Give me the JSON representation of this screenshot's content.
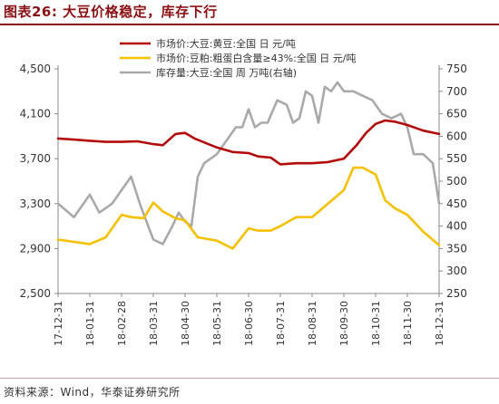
{
  "title": "图表26:    大豆价格稳定，库存下行",
  "source": "资料来源：Wind，华泰证券研究所",
  "colors": {
    "red": "#b30b0b",
    "yellow": "#f5c000",
    "gray": "#a9a9a9",
    "title": "#8b1014"
  },
  "chart_data": {
    "type": "line",
    "title": "大豆价格稳定，库存下行",
    "left_axis": {
      "ylim": [
        2500,
        4500
      ],
      "ticks": [
        "2,500",
        "2,900",
        "3,300",
        "3,700",
        "4,100",
        "4,500"
      ]
    },
    "right_axis": {
      "ylim": [
        250,
        750
      ],
      "ticks": [
        "250",
        "300",
        "350",
        "400",
        "450",
        "500",
        "550",
        "600",
        "650",
        "700",
        "750"
      ]
    },
    "x_ticks": [
      "17-12-31",
      "18-01-31",
      "18-02-28",
      "18-03-31",
      "18-04-30",
      "18-05-31",
      "18-06-30",
      "18-07-31",
      "18-08-31",
      "18-09-30",
      "18-10-31",
      "18-11-30",
      "18-12-31"
    ],
    "legend_position": "top-center",
    "grid": false,
    "series": [
      {
        "name": "市场价:大豆:黄豆:全国 日 元/吨",
        "axis": "left",
        "color": "#b30b0b",
        "points": [
          [
            0,
            3880
          ],
          [
            0.5,
            3870
          ],
          [
            1,
            3860
          ],
          [
            1.5,
            3850
          ],
          [
            2,
            3850
          ],
          [
            2.5,
            3855
          ],
          [
            3,
            3830
          ],
          [
            3.3,
            3820
          ],
          [
            3.7,
            3920
          ],
          [
            4,
            3930
          ],
          [
            4.3,
            3880
          ],
          [
            5,
            3800
          ],
          [
            5.5,
            3760
          ],
          [
            6,
            3750
          ],
          [
            6.3,
            3720
          ],
          [
            6.7,
            3710
          ],
          [
            7,
            3650
          ],
          [
            7.5,
            3660
          ],
          [
            8,
            3660
          ],
          [
            8.5,
            3670
          ],
          [
            9,
            3700
          ],
          [
            9.4,
            3820
          ],
          [
            9.7,
            3930
          ],
          [
            10,
            4010
          ],
          [
            10.3,
            4040
          ],
          [
            10.6,
            4030
          ],
          [
            11,
            4000
          ],
          [
            11.5,
            3950
          ],
          [
            12,
            3920
          ]
        ]
      },
      {
        "name": "市场价:豆粕:粗蛋白含量≥43%:全国 日 元/吨",
        "axis": "left",
        "color": "#f5c000",
        "points": [
          [
            0,
            2980
          ],
          [
            0.5,
            2960
          ],
          [
            1,
            2940
          ],
          [
            1.5,
            3000
          ],
          [
            2,
            3200
          ],
          [
            2.3,
            3180
          ],
          [
            2.7,
            3170
          ],
          [
            3,
            3310
          ],
          [
            3.3,
            3230
          ],
          [
            3.7,
            3170
          ],
          [
            4,
            3150
          ],
          [
            4.4,
            3000
          ],
          [
            5,
            2970
          ],
          [
            5.5,
            2900
          ],
          [
            6,
            3080
          ],
          [
            6.3,
            3060
          ],
          [
            6.7,
            3060
          ],
          [
            7,
            3100
          ],
          [
            7.5,
            3180
          ],
          [
            8,
            3180
          ],
          [
            8.5,
            3300
          ],
          [
            9,
            3420
          ],
          [
            9.3,
            3620
          ],
          [
            9.6,
            3620
          ],
          [
            10,
            3560
          ],
          [
            10.3,
            3330
          ],
          [
            10.6,
            3260
          ],
          [
            11,
            3200
          ],
          [
            11.5,
            3050
          ],
          [
            12,
            2930
          ]
        ]
      },
      {
        "name": "库存量:大豆:全国 周 万吨(右轴)",
        "axis": "right",
        "color": "#a9a9a9",
        "points": [
          [
            0,
            450
          ],
          [
            0.5,
            420
          ],
          [
            1,
            470
          ],
          [
            1.3,
            430
          ],
          [
            1.7,
            450
          ],
          [
            2,
            480
          ],
          [
            2.3,
            510
          ],
          [
            2.6,
            445
          ],
          [
            3,
            370
          ],
          [
            3.3,
            360
          ],
          [
            3.6,
            400
          ],
          [
            3.8,
            430
          ],
          [
            4,
            410
          ],
          [
            4.2,
            400
          ],
          [
            4.4,
            510
          ],
          [
            4.6,
            540
          ],
          [
            5,
            560
          ],
          [
            5.2,
            580
          ],
          [
            5.4,
            600
          ],
          [
            5.6,
            620
          ],
          [
            5.8,
            620
          ],
          [
            6,
            660
          ],
          [
            6.2,
            620
          ],
          [
            6.4,
            630
          ],
          [
            6.6,
            630
          ],
          [
            6.9,
            680
          ],
          [
            7.2,
            670
          ],
          [
            7.4,
            630
          ],
          [
            7.6,
            640
          ],
          [
            7.8,
            700
          ],
          [
            8,
            690
          ],
          [
            8.2,
            630
          ],
          [
            8.4,
            710
          ],
          [
            8.6,
            700
          ],
          [
            8.8,
            720
          ],
          [
            9,
            700
          ],
          [
            9.3,
            700
          ],
          [
            9.6,
            690
          ],
          [
            9.9,
            680
          ],
          [
            10.2,
            650
          ],
          [
            10.5,
            640
          ],
          [
            10.8,
            650
          ],
          [
            11,
            620
          ],
          [
            11.2,
            560
          ],
          [
            11.5,
            560
          ],
          [
            11.8,
            540
          ],
          [
            12,
            450
          ]
        ]
      }
    ]
  }
}
